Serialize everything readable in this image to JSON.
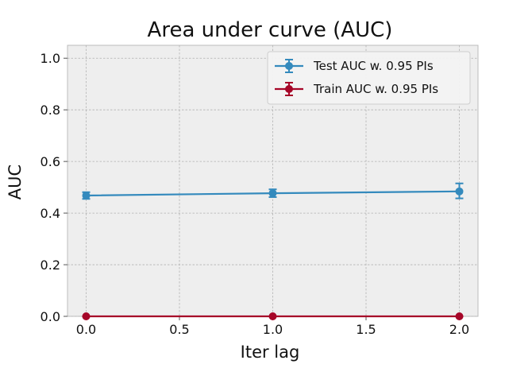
{
  "chart_data": {
    "type": "line",
    "title": "Area under curve (AUC)",
    "xlabel": "Iter lag",
    "ylabel": "AUC",
    "xlim": [
      -0.1,
      2.1
    ],
    "ylim": [
      0.0,
      1.05
    ],
    "xticks": [
      "0.0",
      "0.5",
      "1.0",
      "1.5",
      "2.0"
    ],
    "xtick_values": [
      0.0,
      0.5,
      1.0,
      1.5,
      2.0
    ],
    "yticks": [
      "0.0",
      "0.2",
      "0.4",
      "0.6",
      "0.8",
      "1.0"
    ],
    "ytick_values": [
      0.0,
      0.2,
      0.4,
      0.6,
      0.8,
      1.0
    ],
    "grid": true,
    "legend_position": "top-right",
    "x": [
      0.0,
      1.0,
      2.0
    ],
    "series": [
      {
        "name": "Test AUC w. 0.95 PIs",
        "color": "#348abd",
        "values": [
          0.468,
          0.477,
          0.484
        ],
        "lower": [
          0.455,
          0.462,
          0.457
        ],
        "upper": [
          0.481,
          0.492,
          0.515
        ]
      },
      {
        "name": "Train AUC w. 0.95 PIs",
        "color": "#a60628",
        "values": [
          0.0,
          0.0,
          0.0
        ],
        "lower": [
          0.0,
          0.0,
          0.0
        ],
        "upper": [
          0.0,
          0.0,
          0.0
        ]
      }
    ]
  }
}
